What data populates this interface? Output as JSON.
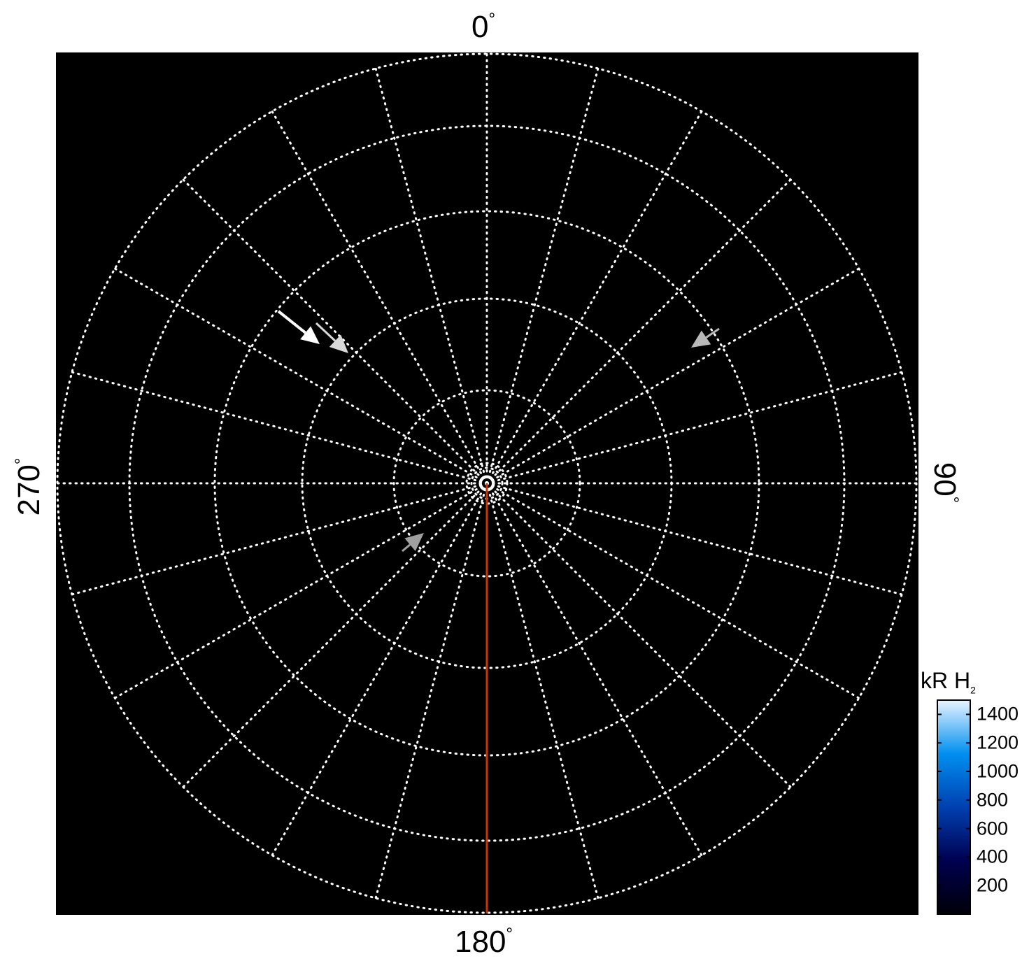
{
  "chart_data": {
    "type": "polar-map",
    "angle_labels": [
      {
        "angle": 0,
        "text": "0",
        "unit": "°"
      },
      {
        "angle": 90,
        "text": "90",
        "unit": "°"
      },
      {
        "angle": 180,
        "text": "180",
        "unit": "°"
      },
      {
        "angle": 270,
        "text": "270",
        "unit": "°"
      }
    ],
    "grid": true,
    "meridian_spacing_deg": 15,
    "highlight_meridian": {
      "angle": 180,
      "color": "#cc3300"
    },
    "background_color": "#000000",
    "colorbar": {
      "title": "kR H",
      "title_subscript": "2",
      "range": [
        0,
        1500
      ],
      "ticks": [
        "1400",
        "1200",
        "1000",
        "800",
        "600",
        "400",
        "200"
      ],
      "tick_values": [
        1400,
        1200,
        1000,
        800,
        600,
        400,
        200
      ],
      "colors": [
        "#000008",
        "#000050",
        "#0040b0",
        "#0090f0",
        "#e8f4ff"
      ]
    },
    "arrows": [
      {
        "color": "#ffffff"
      },
      {
        "color": "#d8d8d8"
      },
      {
        "color": "#b8b8b8"
      },
      {
        "color": "#a0a0a0"
      }
    ]
  }
}
